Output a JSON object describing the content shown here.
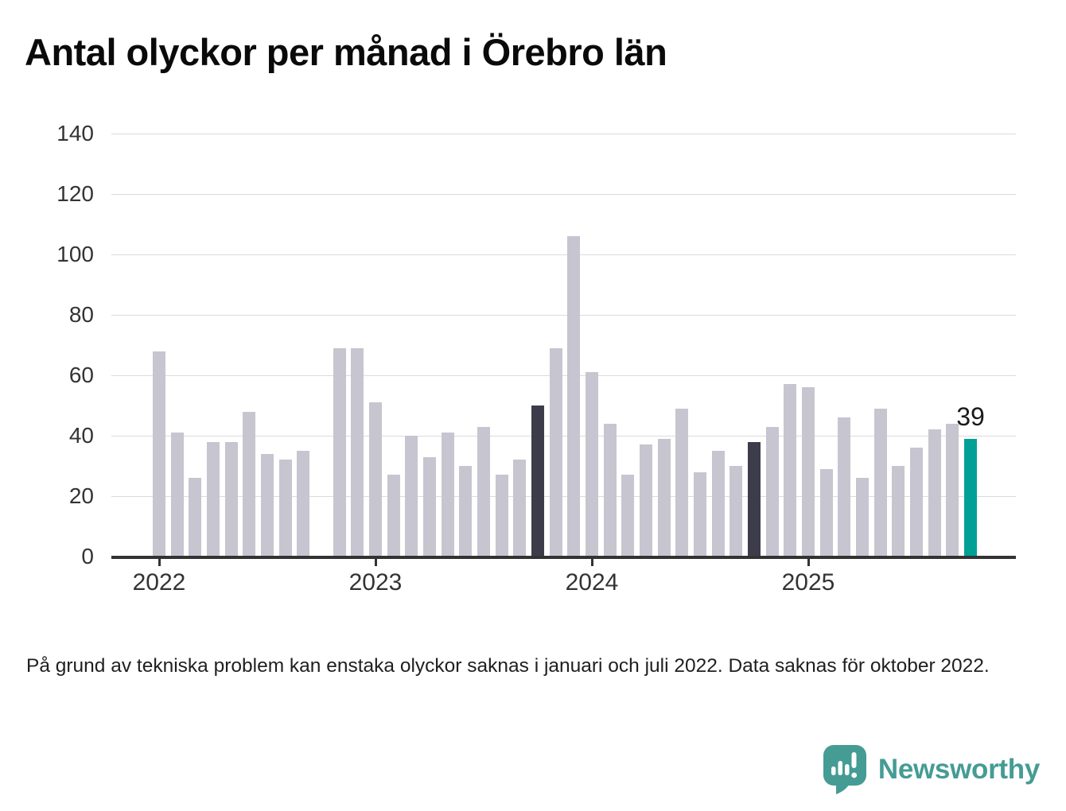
{
  "title": "Antal olyckor per månad i Örebro län",
  "footnote": "På grund av tekniska problem kan enstaka olyckor saknas i januari och juli 2022. Data saknas för oktober 2022.",
  "logo": {
    "text": "Newsworthy",
    "color": "#459C94",
    "mark_icon": "speech-bubble-bar-chart-icon"
  },
  "colors": {
    "bar_default": "#C6C5D0",
    "bar_highlight_dark": "#3D3C4B",
    "bar_highlight_current": "#00A096",
    "axis": "#333333",
    "gridline": "#dbdbdb",
    "tick_text": "#333333"
  },
  "chart_data": {
    "type": "bar",
    "title": "Antal olyckor per månad i Örebro län",
    "xlabel": "",
    "ylabel": "",
    "ylim": [
      0,
      140
    ],
    "yticks": [
      0,
      20,
      40,
      60,
      80,
      100,
      120,
      140
    ],
    "year_ticks": [
      "2022",
      "2023",
      "2024",
      "2025"
    ],
    "grid": true,
    "legend": "none",
    "note": "Missing bar for 2022-10; same-month-as-latest highlighted dark in prior years; latest month teal with data label",
    "months": [
      {
        "month": "2022-01",
        "value": 68,
        "highlight": "none"
      },
      {
        "month": "2022-02",
        "value": 41,
        "highlight": "none"
      },
      {
        "month": "2022-03",
        "value": 26,
        "highlight": "none"
      },
      {
        "month": "2022-04",
        "value": 38,
        "highlight": "none"
      },
      {
        "month": "2022-05",
        "value": 38,
        "highlight": "none"
      },
      {
        "month": "2022-06",
        "value": 48,
        "highlight": "none"
      },
      {
        "month": "2022-07",
        "value": 34,
        "highlight": "none"
      },
      {
        "month": "2022-08",
        "value": 32,
        "highlight": "none"
      },
      {
        "month": "2022-09",
        "value": 35,
        "highlight": "none"
      },
      {
        "month": "2022-10",
        "value": null,
        "highlight": "none"
      },
      {
        "month": "2022-11",
        "value": 69,
        "highlight": "none"
      },
      {
        "month": "2022-12",
        "value": 69,
        "highlight": "none"
      },
      {
        "month": "2023-01",
        "value": 51,
        "highlight": "none"
      },
      {
        "month": "2023-02",
        "value": 27,
        "highlight": "none"
      },
      {
        "month": "2023-03",
        "value": 40,
        "highlight": "none"
      },
      {
        "month": "2023-04",
        "value": 33,
        "highlight": "none"
      },
      {
        "month": "2023-05",
        "value": 41,
        "highlight": "none"
      },
      {
        "month": "2023-06",
        "value": 30,
        "highlight": "none"
      },
      {
        "month": "2023-07",
        "value": 43,
        "highlight": "none"
      },
      {
        "month": "2023-08",
        "value": 27,
        "highlight": "none"
      },
      {
        "month": "2023-09",
        "value": 32,
        "highlight": "none"
      },
      {
        "month": "2023-10",
        "value": 50,
        "highlight": "dark"
      },
      {
        "month": "2023-11",
        "value": 69,
        "highlight": "none"
      },
      {
        "month": "2023-12",
        "value": 106,
        "highlight": "none"
      },
      {
        "month": "2024-01",
        "value": 61,
        "highlight": "none"
      },
      {
        "month": "2024-02",
        "value": 44,
        "highlight": "none"
      },
      {
        "month": "2024-03",
        "value": 27,
        "highlight": "none"
      },
      {
        "month": "2024-04",
        "value": 37,
        "highlight": "none"
      },
      {
        "month": "2024-05",
        "value": 39,
        "highlight": "none"
      },
      {
        "month": "2024-06",
        "value": 49,
        "highlight": "none"
      },
      {
        "month": "2024-07",
        "value": 28,
        "highlight": "none"
      },
      {
        "month": "2024-08",
        "value": 35,
        "highlight": "none"
      },
      {
        "month": "2024-09",
        "value": 30,
        "highlight": "none"
      },
      {
        "month": "2024-10",
        "value": 38,
        "highlight": "dark"
      },
      {
        "month": "2024-11",
        "value": 43,
        "highlight": "none"
      },
      {
        "month": "2024-12",
        "value": 57,
        "highlight": "none"
      },
      {
        "month": "2025-01",
        "value": 56,
        "highlight": "none"
      },
      {
        "month": "2025-02",
        "value": 29,
        "highlight": "none"
      },
      {
        "month": "2025-03",
        "value": 46,
        "highlight": "none"
      },
      {
        "month": "2025-04",
        "value": 26,
        "highlight": "none"
      },
      {
        "month": "2025-05",
        "value": 49,
        "highlight": "none"
      },
      {
        "month": "2025-06",
        "value": 30,
        "highlight": "none"
      },
      {
        "month": "2025-07",
        "value": 36,
        "highlight": "none"
      },
      {
        "month": "2025-08",
        "value": 42,
        "highlight": "none"
      },
      {
        "month": "2025-09",
        "value": 44,
        "highlight": "none"
      },
      {
        "month": "2025-10",
        "value": 39,
        "highlight": "current",
        "label": "39"
      }
    ]
  }
}
